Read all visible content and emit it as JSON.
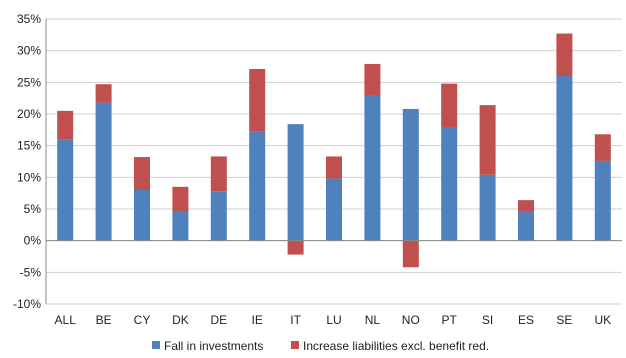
{
  "chart_data": {
    "type": "bar",
    "stacked": true,
    "categories": [
      "ALL",
      "BE",
      "CY",
      "DK",
      "DE",
      "IE",
      "IT",
      "LU",
      "NL",
      "NO",
      "PT",
      "SI",
      "ES",
      "SE",
      "UK"
    ],
    "series": [
      {
        "name": "Fall in investments",
        "color": "#4f81bd",
        "values": [
          16,
          21.8,
          8,
          4.6,
          7.8,
          17.2,
          18.4,
          9.8,
          23,
          20.8,
          17.8,
          10.4,
          4.6,
          26,
          12.6
        ]
      },
      {
        "name": "Increase liabilities excl. benefit red.",
        "color": "#c0504d",
        "values": [
          4.5,
          2.9,
          5.2,
          3.9,
          5.5,
          9.9,
          -2.2,
          3.5,
          4.9,
          -4.2,
          7,
          11,
          1.8,
          6.7,
          4.2
        ]
      }
    ],
    "yticks": [
      "-10%",
      "-5%",
      "0%",
      "5%",
      "10%",
      "15%",
      "20%",
      "25%",
      "30%",
      "35%"
    ],
    "ylim": [
      -10,
      35
    ],
    "grid": true,
    "legend": "bottom",
    "title": "",
    "xlabel": "",
    "ylabel": ""
  }
}
